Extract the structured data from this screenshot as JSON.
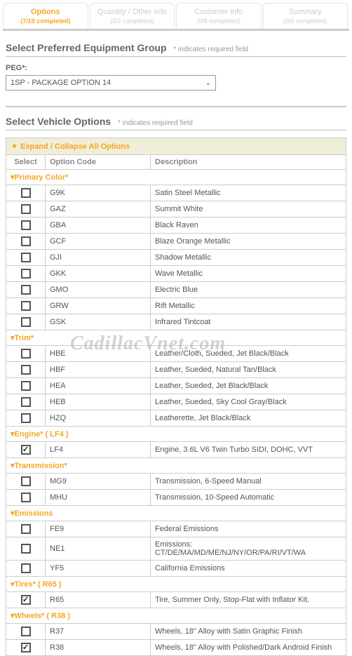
{
  "tabs": [
    {
      "label": "Options",
      "sub": "(7/10 completed)",
      "active": true
    },
    {
      "label": "Quantity / Other Info",
      "sub": "(2/2 completed)",
      "active": false
    },
    {
      "label": "Customer Info",
      "sub": "(0/8 completed)",
      "active": false
    },
    {
      "label": "Summary",
      "sub": "(0/0 completed)",
      "active": false
    }
  ],
  "section1_title": "Select Preferred Equipment Group",
  "req_note": "* indicates required field",
  "peg_label": "PEG*:",
  "peg_value": "1SP - PACKAGE OPTION 14",
  "section2_title": "Select Vehicle Options",
  "expand_label": "Expand / Collapse All Options",
  "head_select": "Select",
  "head_code": "Option Code",
  "head_desc": "Description",
  "watermark": "CadillacVnet.com",
  "groups": [
    {
      "name": "Primary Color*",
      "rows": [
        {
          "code": "G9K",
          "desc": "Satin Steel Metallic",
          "checked": false
        },
        {
          "code": "GAZ",
          "desc": "Summit White",
          "checked": false
        },
        {
          "code": "GBA",
          "desc": "Black Raven",
          "checked": false
        },
        {
          "code": "GCF",
          "desc": "Blaze Orange Metallic",
          "checked": false
        },
        {
          "code": "GJI",
          "desc": "Shadow Metallic",
          "checked": false
        },
        {
          "code": "GKK",
          "desc": "Wave Metallic",
          "checked": false
        },
        {
          "code": "GMO",
          "desc": "Electric Blue",
          "checked": false
        },
        {
          "code": "GRW",
          "desc": "Rift Metallic",
          "checked": false
        },
        {
          "code": "GSK",
          "desc": "Infrared Tintcoat",
          "checked": false
        }
      ]
    },
    {
      "name": "Trim*",
      "rows": [
        {
          "code": "HBE",
          "desc": "Leather/Cloth, Sueded, Jet Black/Black",
          "checked": false
        },
        {
          "code": "HBF",
          "desc": "Leather, Sueded, Natural Tan/Black",
          "checked": false
        },
        {
          "code": "HEA",
          "desc": "Leather, Sueded, Jet Black/Black",
          "checked": false
        },
        {
          "code": "HEB",
          "desc": "Leather, Sueded, Sky Cool Gray/Black",
          "checked": false
        },
        {
          "code": "HZQ",
          "desc": "Leatherette, Jet Black/Black",
          "checked": false
        }
      ]
    },
    {
      "name": "Engine*  ( LF4 )",
      "rows": [
        {
          "code": "LF4",
          "desc": "Engine, 3.6L V6 Twin Turbo SIDI, DOHC, VVT",
          "checked": true
        }
      ]
    },
    {
      "name": "Transmission*",
      "rows": [
        {
          "code": "MG9",
          "desc": "Transmission, 6-Speed Manual",
          "checked": false
        },
        {
          "code": "MHU",
          "desc": "Transmission, 10-Speed Automatic",
          "checked": false
        }
      ]
    },
    {
      "name": "Emissions",
      "rows": [
        {
          "code": "FE9",
          "desc": "Federal Emissions",
          "checked": false
        },
        {
          "code": "NE1",
          "desc": "Emissions: CT/DE/MA/MD/ME/NJ/NY/OR/PA/RI/VT/WA",
          "checked": false
        },
        {
          "code": "YF5",
          "desc": "California Emissions",
          "checked": false
        }
      ]
    },
    {
      "name": "Tires*  ( R65 )",
      "rows": [
        {
          "code": "R65",
          "desc": "Tire, Summer Only, Stop-Flat with Inflator Kit.",
          "checked": true
        }
      ]
    },
    {
      "name": "Wheels*  ( R38 )",
      "rows": [
        {
          "code": "R37",
          "desc": "Wheels, 18\" Alloy with Satin Graphic Finish",
          "checked": false
        },
        {
          "code": "R38",
          "desc": "Wheels, 18\" Alloy with Polished/Dark Android Finish",
          "checked": true
        }
      ]
    }
  ]
}
